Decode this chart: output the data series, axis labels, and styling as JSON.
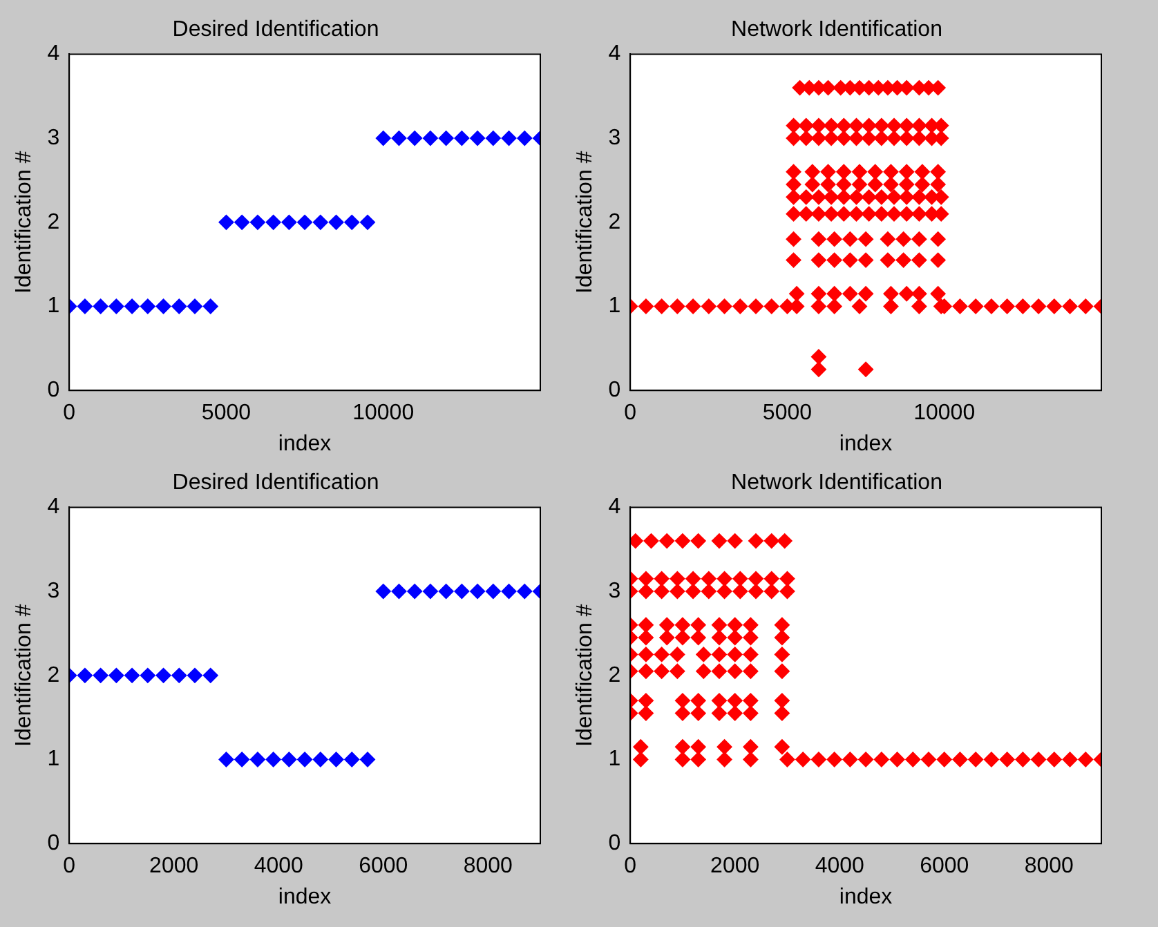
{
  "chart_data": [
    {
      "type": "scatter",
      "title": "Desired Identification",
      "xlabel": "index",
      "ylabel": "Identification #",
      "color": "#0000ff",
      "marker": "diamond",
      "grid": false,
      "xlim": [
        0,
        15000
      ],
      "xticks": [
        0,
        5000,
        10000
      ],
      "ylim": [
        0,
        4
      ],
      "yticks": [
        0,
        1,
        2,
        3,
        4
      ],
      "x": [
        0,
        500,
        1000,
        1500,
        2000,
        2500,
        3000,
        3500,
        4000,
        4500,
        5000,
        5500,
        6000,
        6500,
        7000,
        7500,
        8000,
        8500,
        9000,
        9500,
        10000,
        10500,
        11000,
        11500,
        12000,
        12500,
        13000,
        13500,
        14000,
        14500,
        15000
      ],
      "values": [
        1,
        1,
        1,
        1,
        1,
        1,
        1,
        1,
        1,
        1,
        2,
        2,
        2,
        2,
        2,
        2,
        2,
        2,
        2,
        2,
        3,
        3,
        3,
        3,
        3,
        3,
        3,
        3,
        3,
        3,
        3
      ]
    },
    {
      "type": "scatter",
      "title": "Network Identification",
      "xlabel": "index",
      "ylabel": "Identification #",
      "color": "#ff0000",
      "marker": "diamond",
      "grid": false,
      "xlim": [
        0,
        15000
      ],
      "xticks": [
        0,
        5000,
        10000
      ],
      "ylim": [
        0,
        4
      ],
      "yticks": [
        0,
        1,
        2,
        3,
        4
      ],
      "x": [
        0,
        500,
        1000,
        1500,
        2000,
        2500,
        3000,
        3500,
        4000,
        4500,
        10000,
        10500,
        11000,
        11500,
        12000,
        12500,
        13000,
        13500,
        14000,
        14500,
        15000,
        5400,
        5700,
        6000,
        6300,
        6700,
        7000,
        7300,
        7600,
        7900,
        8200,
        8500,
        8800,
        9200,
        9500,
        9800,
        5200,
        5600,
        6000,
        6400,
        6800,
        7200,
        7600,
        8000,
        8400,
        8800,
        9200,
        9600,
        9900,
        5200,
        5600,
        6000,
        6400,
        6800,
        7200,
        7600,
        8000,
        8400,
        8800,
        9200,
        9600,
        9900,
        5200,
        5800,
        6300,
        6800,
        7300,
        7800,
        8300,
        8800,
        9300,
        9800,
        5200,
        5800,
        6300,
        6800,
        7300,
        7800,
        8300,
        8800,
        9300,
        9800,
        5200,
        5600,
        6000,
        6400,
        6800,
        7200,
        7600,
        8000,
        8400,
        8800,
        9200,
        9600,
        9900,
        5200,
        5600,
        6000,
        6400,
        6800,
        7200,
        7600,
        8000,
        8400,
        8800,
        9200,
        9600,
        9900,
        5200,
        6000,
        6500,
        7000,
        7500,
        8200,
        8700,
        9200,
        9800,
        5200,
        6000,
        6500,
        7000,
        7500,
        8200,
        8700,
        9200,
        9800,
        5300,
        6000,
        6500,
        7000,
        7500,
        8300,
        8800,
        9200,
        9800,
        5000,
        5300,
        6000,
        6500,
        7300,
        8300,
        9200,
        9900,
        6000,
        6000,
        7500
      ],
      "values": [
        1,
        1,
        1,
        1,
        1,
        1,
        1,
        1,
        1,
        1,
        1,
        1,
        1,
        1,
        1,
        1,
        1,
        1,
        1,
        1,
        1,
        3.6,
        3.6,
        3.6,
        3.6,
        3.6,
        3.6,
        3.6,
        3.6,
        3.6,
        3.6,
        3.6,
        3.6,
        3.6,
        3.6,
        3.6,
        3.15,
        3.15,
        3.15,
        3.15,
        3.15,
        3.15,
        3.15,
        3.15,
        3.15,
        3.15,
        3.15,
        3.15,
        3.15,
        3,
        3,
        3,
        3,
        3,
        3,
        3,
        3,
        3,
        3,
        3,
        3,
        3,
        2.6,
        2.6,
        2.6,
        2.6,
        2.6,
        2.6,
        2.6,
        2.6,
        2.6,
        2.6,
        2.45,
        2.45,
        2.45,
        2.45,
        2.45,
        2.45,
        2.45,
        2.45,
        2.45,
        2.45,
        2.3,
        2.3,
        2.3,
        2.3,
        2.3,
        2.3,
        2.3,
        2.3,
        2.3,
        2.3,
        2.3,
        2.3,
        2.3,
        2.1,
        2.1,
        2.1,
        2.1,
        2.1,
        2.1,
        2.1,
        2.1,
        2.1,
        2.1,
        2.1,
        2.1,
        2.1,
        1.8,
        1.8,
        1.8,
        1.8,
        1.8,
        1.8,
        1.8,
        1.8,
        1.8,
        1.55,
        1.55,
        1.55,
        1.55,
        1.55,
        1.55,
        1.55,
        1.55,
        1.55,
        1.15,
        1.15,
        1.15,
        1.15,
        1.15,
        1.15,
        1.15,
        1.15,
        1.15,
        1,
        1,
        1,
        1,
        1,
        1,
        1,
        1,
        0.4,
        0.25,
        0.25
      ]
    },
    {
      "type": "scatter",
      "title": "Desired Identification",
      "xlabel": "index",
      "ylabel": "Identification #",
      "color": "#0000ff",
      "marker": "diamond",
      "grid": false,
      "xlim": [
        0,
        9000
      ],
      "xticks": [
        0,
        2000,
        4000,
        6000,
        8000
      ],
      "ylim": [
        0,
        4
      ],
      "yticks": [
        0,
        1,
        2,
        3,
        4
      ],
      "x": [
        0,
        300,
        600,
        900,
        1200,
        1500,
        1800,
        2100,
        2400,
        2700,
        3000,
        3300,
        3600,
        3900,
        4200,
        4500,
        4800,
        5100,
        5400,
        5700,
        6000,
        6300,
        6600,
        6900,
        7200,
        7500,
        7800,
        8100,
        8400,
        8700,
        9000
      ],
      "values": [
        2,
        2,
        2,
        2,
        2,
        2,
        2,
        2,
        2,
        2,
        1,
        1,
        1,
        1,
        1,
        1,
        1,
        1,
        1,
        1,
        3,
        3,
        3,
        3,
        3,
        3,
        3,
        3,
        3,
        3,
        3
      ]
    },
    {
      "type": "scatter",
      "title": "Network Identification",
      "xlabel": "index",
      "ylabel": "Identification #",
      "color": "#ff0000",
      "marker": "diamond",
      "grid": false,
      "xlim": [
        0,
        9000
      ],
      "xticks": [
        0,
        2000,
        4000,
        6000,
        8000
      ],
      "ylim": [
        0,
        4
      ],
      "yticks": [
        0,
        1,
        2,
        3,
        4
      ],
      "x": [
        100,
        400,
        700,
        1000,
        1300,
        1700,
        2000,
        2400,
        2700,
        2950,
        0,
        300,
        600,
        900,
        1200,
        1500,
        1800,
        2100,
        2400,
        2700,
        3000,
        0,
        300,
        600,
        900,
        1200,
        1500,
        1800,
        2100,
        2400,
        2700,
        3000,
        0,
        300,
        700,
        1000,
        1300,
        1700,
        2000,
        2300,
        2900,
        0,
        300,
        700,
        1000,
        1300,
        1700,
        2000,
        2300,
        2900,
        0,
        300,
        600,
        900,
        1400,
        1700,
        2000,
        2300,
        2900,
        0,
        300,
        600,
        900,
        1400,
        1700,
        2000,
        2300,
        2900,
        0,
        300,
        1000,
        1300,
        1700,
        2000,
        2300,
        2900,
        0,
        300,
        1000,
        1300,
        1700,
        2000,
        2300,
        2900,
        200,
        1000,
        1300,
        1800,
        2300,
        2900,
        200,
        1000,
        1300,
        1800,
        2300,
        3000,
        3300,
        3600,
        3900,
        4200,
        4500,
        4800,
        5100,
        5400,
        5700,
        6000,
        6300,
        6600,
        6900,
        7200,
        7500,
        7800,
        8100,
        8400,
        8700,
        9000
      ],
      "values": [
        3.6,
        3.6,
        3.6,
        3.6,
        3.6,
        3.6,
        3.6,
        3.6,
        3.6,
        3.6,
        3.15,
        3.15,
        3.15,
        3.15,
        3.15,
        3.15,
        3.15,
        3.15,
        3.15,
        3.15,
        3.15,
        3,
        3,
        3,
        3,
        3,
        3,
        3,
        3,
        3,
        3,
        3,
        2.6,
        2.6,
        2.6,
        2.6,
        2.6,
        2.6,
        2.6,
        2.6,
        2.6,
        2.45,
        2.45,
        2.45,
        2.45,
        2.45,
        2.45,
        2.45,
        2.45,
        2.45,
        2.25,
        2.25,
        2.25,
        2.25,
        2.25,
        2.25,
        2.25,
        2.25,
        2.25,
        2.05,
        2.05,
        2.05,
        2.05,
        2.05,
        2.05,
        2.05,
        2.05,
        2.05,
        1.7,
        1.7,
        1.7,
        1.7,
        1.7,
        1.7,
        1.7,
        1.7,
        1.55,
        1.55,
        1.55,
        1.55,
        1.55,
        1.55,
        1.55,
        1.55,
        1.15,
        1.15,
        1.15,
        1.15,
        1.15,
        1.15,
        1,
        1,
        1,
        1,
        1,
        1,
        1,
        1,
        1,
        1,
        1,
        1,
        1,
        1,
        1,
        1,
        1,
        1,
        1,
        1,
        1,
        1,
        1,
        1,
        1,
        1
      ]
    }
  ]
}
